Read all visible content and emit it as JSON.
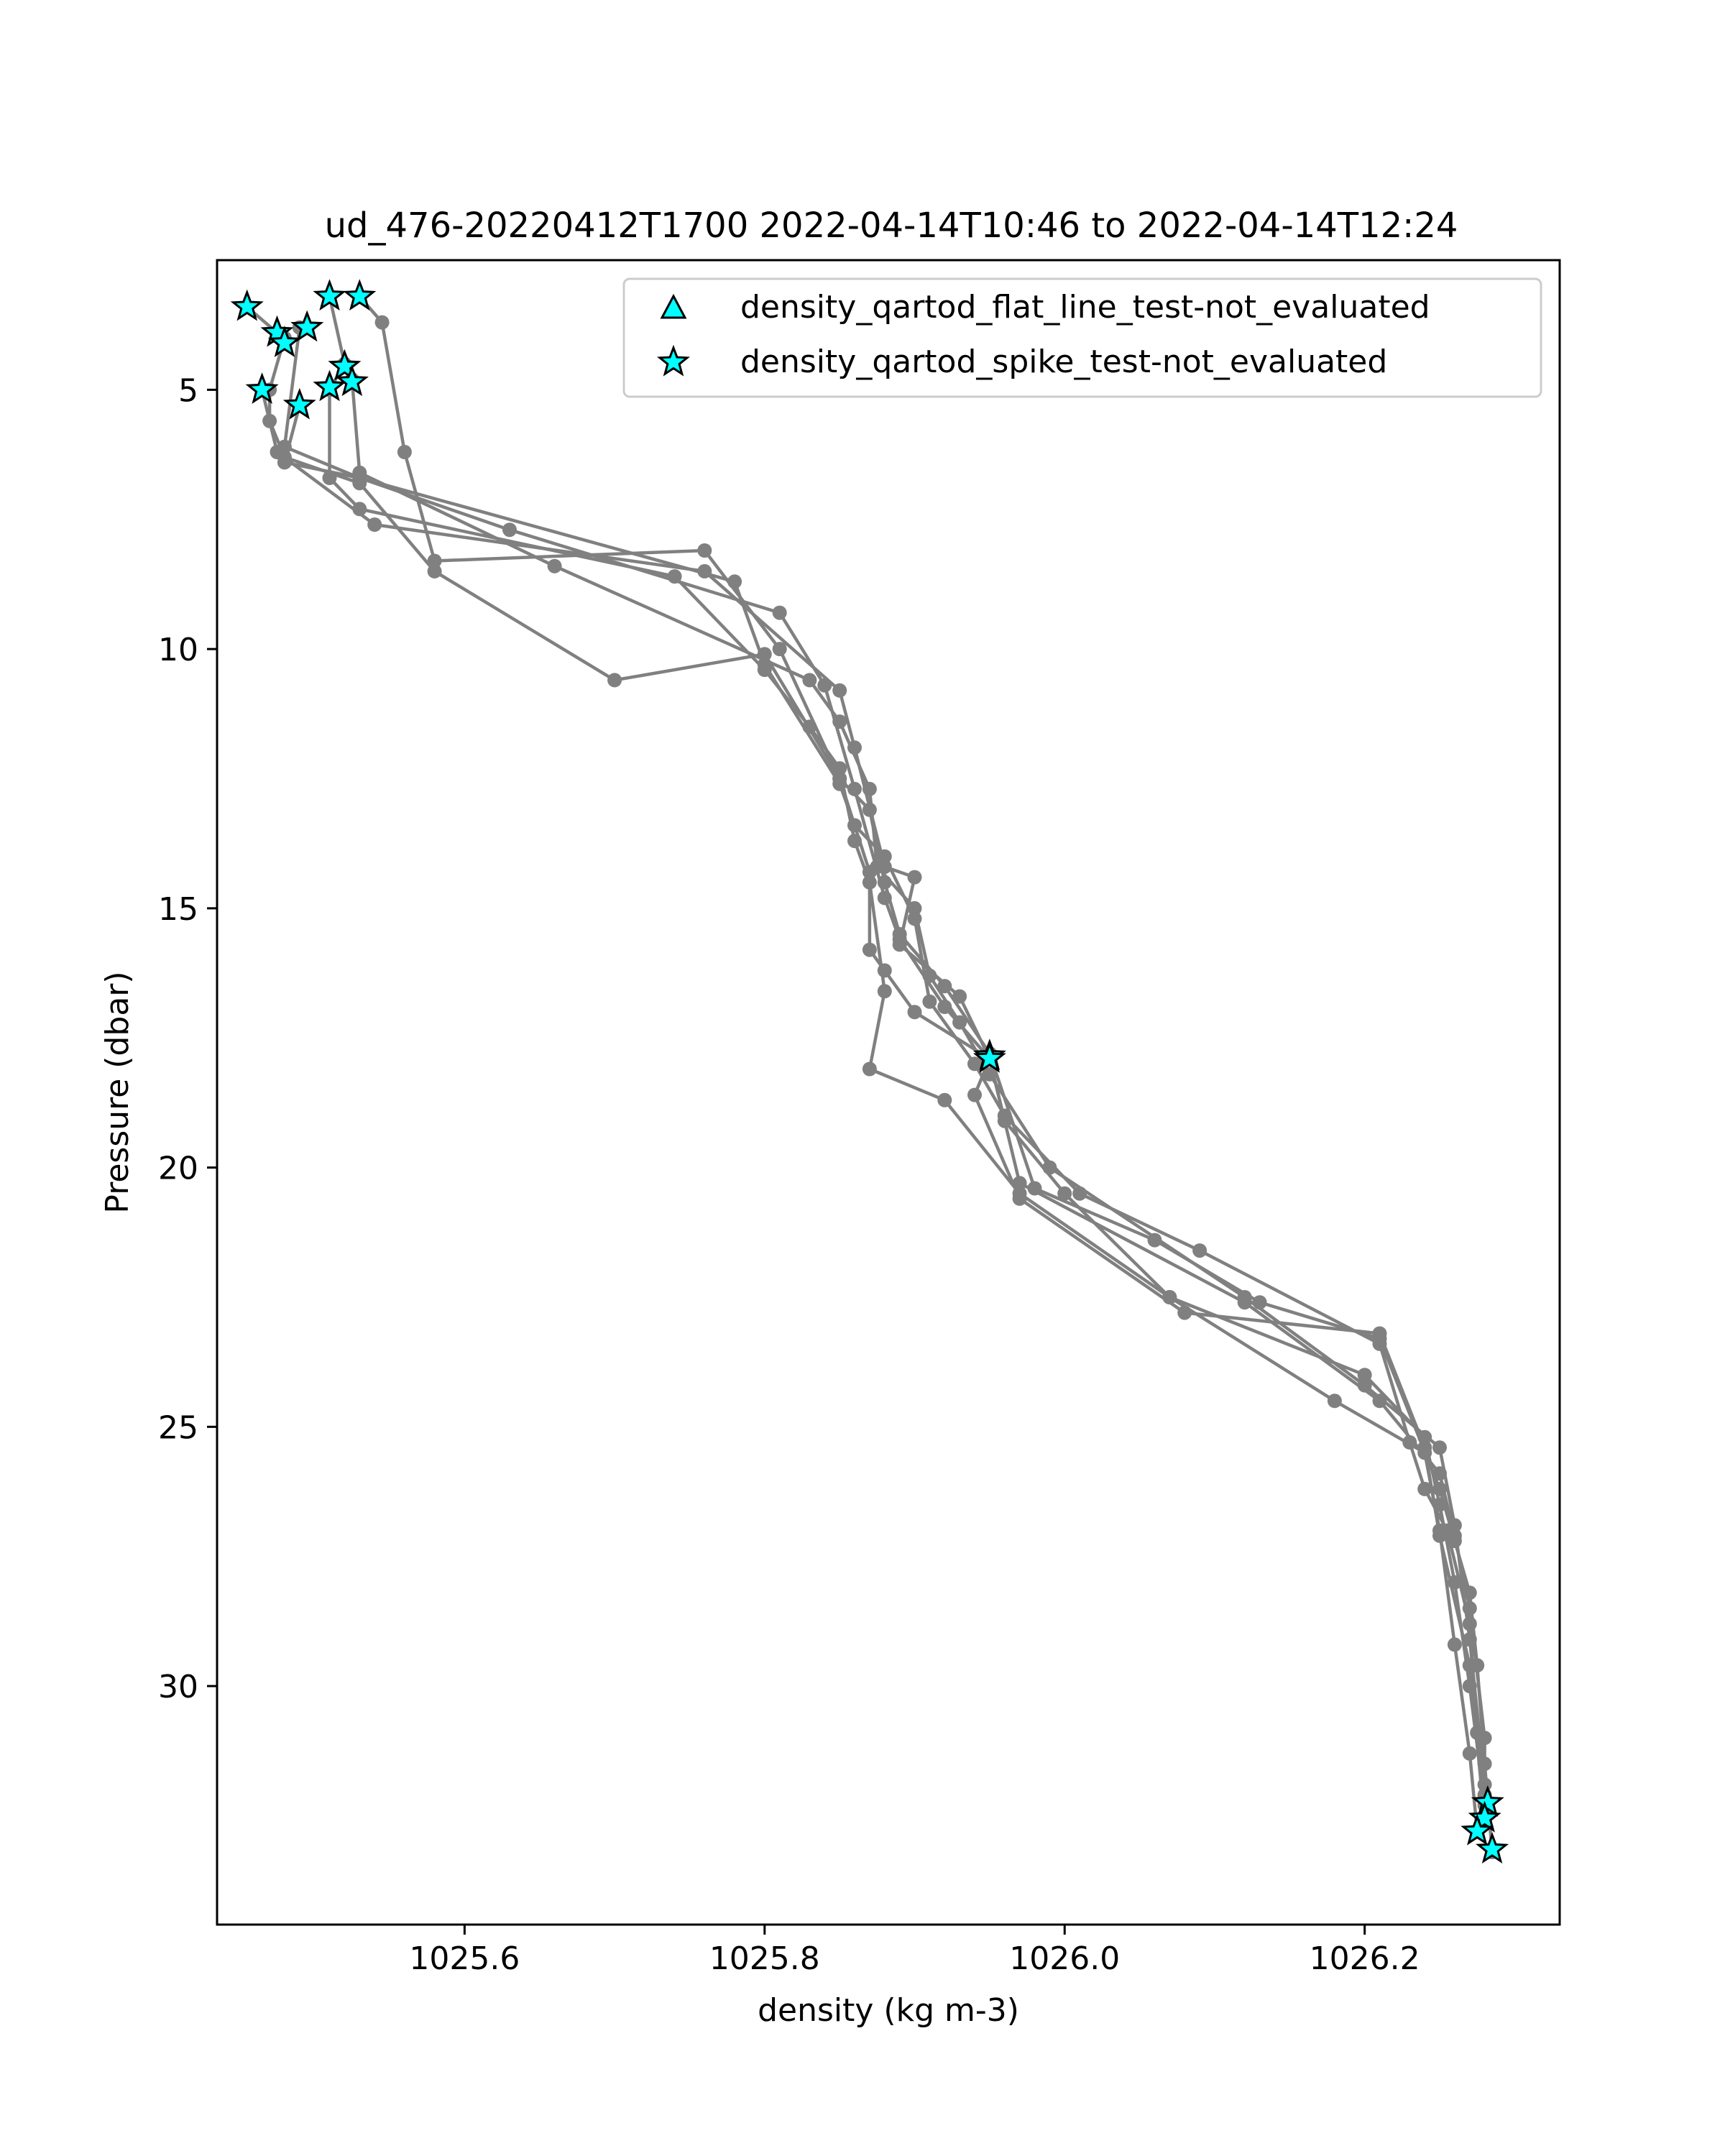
{
  "chart_data": {
    "type": "line",
    "title": "ud_476-20220412T1700 2022-04-14T10:46 to 2022-04-14T12:24",
    "xlabel": "density (kg m-3)",
    "ylabel": "Pressure (dbar)",
    "xlim": [
      1025.435,
      1026.33
    ],
    "ylim": [
      34.6,
      2.5
    ],
    "y_inverted": true,
    "grid": false,
    "legend_position": "top-right",
    "x_ticks": [
      1025.6,
      1025.8,
      1026.0,
      1026.2
    ],
    "x_tick_labels": [
      "1025.6",
      "1025.8",
      "1026.0",
      "1026.2"
    ],
    "y_ticks": [
      5,
      10,
      15,
      20,
      25,
      30
    ],
    "y_tick_labels": [
      "5",
      "10",
      "15",
      "20",
      "25",
      "30"
    ],
    "colors": {
      "profile_line": "#808080",
      "marker_fill": "#00ffff",
      "marker_edge": "#000000"
    },
    "series": [
      {
        "points": [
          [
            1025.455,
            3.4
          ],
          [
            1025.475,
            3.9
          ],
          [
            1025.48,
            4.0
          ],
          [
            1025.47,
            5.0
          ],
          [
            1025.47,
            5.6
          ],
          [
            1025.48,
            6.3
          ],
          [
            1025.53,
            6.8
          ],
          [
            1025.58,
            8.5
          ],
          [
            1025.7,
            10.6
          ],
          [
            1025.8,
            10.1
          ],
          [
            1025.85,
            12.5
          ],
          [
            1025.87,
            14.3
          ],
          [
            1025.87,
            15.8
          ],
          [
            1025.88,
            16.2
          ],
          [
            1025.9,
            17.0
          ],
          [
            1025.95,
            17.9
          ],
          [
            1025.96,
            19.1
          ],
          [
            1026.0,
            20.5
          ],
          [
            1026.07,
            22.5
          ],
          [
            1026.2,
            24.0
          ],
          [
            1026.24,
            25.2
          ],
          [
            1026.25,
            26.5
          ],
          [
            1026.26,
            28.0
          ],
          [
            1026.27,
            30.0
          ],
          [
            1026.28,
            32.3
          ]
        ]
      },
      {
        "points": [
          [
            1025.51,
            3.2
          ],
          [
            1025.52,
            4.5
          ],
          [
            1025.51,
            5.0
          ],
          [
            1025.51,
            6.7
          ],
          [
            1025.53,
            7.3
          ],
          [
            1025.74,
            8.6
          ],
          [
            1025.8,
            10.4
          ],
          [
            1025.83,
            11.5
          ],
          [
            1025.85,
            12.3
          ],
          [
            1025.86,
            13.7
          ],
          [
            1025.87,
            14.5
          ],
          [
            1025.88,
            16.6
          ],
          [
            1025.87,
            18.1
          ],
          [
            1025.92,
            18.7
          ],
          [
            1025.97,
            20.5
          ],
          [
            1026.07,
            22.5
          ],
          [
            1026.18,
            24.5
          ],
          [
            1026.24,
            25.5
          ],
          [
            1026.25,
            27.0
          ],
          [
            1026.26,
            29.2
          ],
          [
            1026.27,
            31.3
          ],
          [
            1026.275,
            32.8
          ]
        ]
      },
      {
        "points": [
          [
            1025.53,
            3.2
          ],
          [
            1025.545,
            3.7
          ],
          [
            1025.56,
            6.2
          ],
          [
            1025.58,
            8.3
          ],
          [
            1025.76,
            8.1
          ],
          [
            1025.81,
            10.0
          ],
          [
            1025.85,
            12.5
          ],
          [
            1025.87,
            13.1
          ],
          [
            1025.88,
            14.5
          ],
          [
            1025.89,
            15.5
          ],
          [
            1025.92,
            16.5
          ],
          [
            1025.95,
            17.8
          ],
          [
            1025.95,
            17.8
          ],
          [
            1025.98,
            20.4
          ],
          [
            1026.06,
            21.4
          ],
          [
            1026.13,
            22.6
          ],
          [
            1026.21,
            23.3
          ],
          [
            1026.25,
            26.2
          ],
          [
            1026.26,
            27.2
          ],
          [
            1026.27,
            28.2
          ],
          [
            1026.275,
            29.6
          ],
          [
            1026.28,
            31.5
          ],
          [
            1026.285,
            33.2
          ]
        ]
      },
      {
        "points": [
          [
            1025.49,
            3.8
          ],
          [
            1025.48,
            6.1
          ],
          [
            1025.53,
            6.7
          ],
          [
            1025.63,
            7.7
          ],
          [
            1025.81,
            9.3
          ],
          [
            1025.84,
            10.7
          ],
          [
            1025.86,
            12.7
          ],
          [
            1025.88,
            14.8
          ],
          [
            1025.89,
            15.6
          ],
          [
            1025.92,
            16.9
          ],
          [
            1025.95,
            17.9
          ],
          [
            1025.97,
            20.3
          ],
          [
            1026.12,
            22.6
          ],
          [
            1026.21,
            24.5
          ],
          [
            1026.25,
            25.9
          ],
          [
            1026.26,
            27.1
          ],
          [
            1026.27,
            28.5
          ],
          [
            1026.28,
            31.0
          ],
          [
            1026.28,
            32.5
          ]
        ]
      },
      {
        "points": [
          [
            1025.49,
            5.3
          ],
          [
            1025.48,
            6.4
          ],
          [
            1025.53,
            6.7
          ],
          [
            1025.78,
            8.7
          ],
          [
            1025.8,
            10.3
          ],
          [
            1025.85,
            12.6
          ],
          [
            1025.86,
            13.4
          ],
          [
            1025.88,
            14.0
          ],
          [
            1025.9,
            15.2
          ],
          [
            1025.91,
            16.8
          ],
          [
            1025.94,
            18.0
          ],
          [
            1025.96,
            19.0
          ],
          [
            1026.01,
            20.5
          ],
          [
            1026.09,
            21.6
          ],
          [
            1026.21,
            23.4
          ],
          [
            1026.23,
            25.3
          ],
          [
            1026.24,
            26.2
          ],
          [
            1026.255,
            27.0
          ],
          [
            1026.27,
            28.8
          ],
          [
            1026.275,
            30.9
          ],
          [
            1026.28,
            32.1
          ]
        ]
      },
      {
        "points": [
          [
            1025.525,
            4.8
          ],
          [
            1025.53,
            6.6
          ],
          [
            1025.66,
            8.4
          ],
          [
            1025.83,
            10.6
          ],
          [
            1025.85,
            11.4
          ],
          [
            1025.87,
            12.7
          ],
          [
            1025.875,
            14.2
          ],
          [
            1025.9,
            15.0
          ],
          [
            1025.91,
            16.3
          ],
          [
            1025.93,
            17.2
          ],
          [
            1025.95,
            18.2
          ],
          [
            1025.99,
            20.0
          ],
          [
            1026.12,
            22.5
          ],
          [
            1026.2,
            24.2
          ],
          [
            1026.25,
            25.4
          ],
          [
            1026.26,
            26.9
          ],
          [
            1026.27,
            29.1
          ],
          [
            1026.28,
            31.9
          ]
        ]
      },
      {
        "points": [
          [
            1025.465,
            5.0
          ],
          [
            1025.475,
            6.2
          ],
          [
            1025.54,
            7.6
          ],
          [
            1025.76,
            8.5
          ],
          [
            1025.85,
            10.8
          ],
          [
            1025.86,
            11.9
          ],
          [
            1025.88,
            14.2
          ],
          [
            1025.9,
            14.4
          ],
          [
            1025.89,
            15.7
          ],
          [
            1025.93,
            16.7
          ],
          [
            1025.95,
            17.9
          ],
          [
            1025.94,
            18.6
          ],
          [
            1025.97,
            20.6
          ],
          [
            1026.08,
            22.8
          ],
          [
            1026.21,
            23.2
          ],
          [
            1026.24,
            25.4
          ],
          [
            1026.25,
            27.1
          ],
          [
            1026.27,
            29.6
          ],
          [
            1026.28,
            32.6
          ]
        ]
      }
    ],
    "flat_line_markers": [],
    "spike_markers": [
      [
        1025.455,
        3.4
      ],
      [
        1025.51,
        3.2
      ],
      [
        1025.53,
        3.2
      ],
      [
        1025.475,
        3.9
      ],
      [
        1025.48,
        4.1
      ],
      [
        1025.495,
        3.8
      ],
      [
        1025.52,
        4.55
      ],
      [
        1025.525,
        4.85
      ],
      [
        1025.51,
        4.95
      ],
      [
        1025.465,
        5.0
      ],
      [
        1025.49,
        5.3
      ],
      [
        1025.95,
        17.85
      ],
      [
        1025.95,
        17.9
      ],
      [
        1026.282,
        32.25
      ],
      [
        1026.28,
        32.55
      ],
      [
        1026.275,
        32.8
      ],
      [
        1026.285,
        33.15
      ]
    ],
    "legend": [
      {
        "label": "density_qartod_flat_line_test-not_evaluated",
        "marker": "triangle"
      },
      {
        "label": "density_qartod_spike_test-not_evaluated",
        "marker": "star"
      }
    ]
  }
}
